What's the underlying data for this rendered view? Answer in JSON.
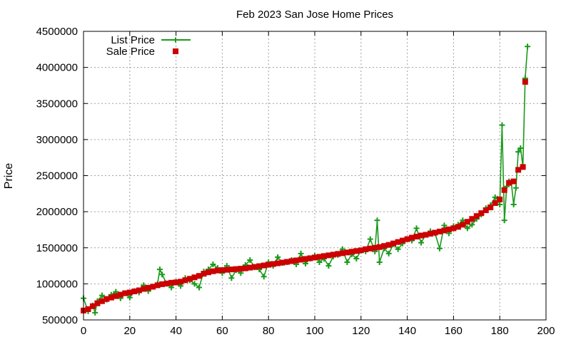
{
  "chart_data": {
    "type": "line",
    "title": "Feb 2023 San Jose Home Prices",
    "xlabel": "",
    "ylabel": "Price",
    "xlim": [
      0,
      200
    ],
    "ylim": [
      500000,
      4500000
    ],
    "x_ticks": [
      0,
      20,
      40,
      60,
      80,
      100,
      120,
      140,
      160,
      180,
      200
    ],
    "y_ticks": [
      500000,
      1000000,
      1500000,
      2000000,
      2500000,
      3000000,
      3500000,
      4000000,
      4500000
    ],
    "x_tick_labels": [
      "0",
      "20",
      "40",
      "60",
      "80",
      "100",
      "120",
      "140",
      "160",
      "180",
      "200"
    ],
    "y_tick_labels": [
      "500000",
      "1000000",
      "1500000",
      "2000000",
      "2500000",
      "3000000",
      "3500000",
      "4000000",
      "4500000"
    ],
    "grid": true,
    "legend_position": "top-left",
    "series": [
      {
        "name": "List Price",
        "color": "#1a9a1a",
        "style": "line-with-plus-markers",
        "x": [
          0,
          2,
          4,
          5,
          6,
          8,
          10,
          12,
          14,
          16,
          18,
          20,
          22,
          24,
          26,
          28,
          30,
          32,
          33,
          34,
          36,
          38,
          40,
          42,
          44,
          46,
          48,
          50,
          52,
          54,
          56,
          58,
          60,
          62,
          64,
          66,
          68,
          70,
          72,
          74,
          76,
          78,
          80,
          82,
          84,
          86,
          88,
          90,
          92,
          94,
          96,
          98,
          100,
          102,
          104,
          106,
          108,
          110,
          112,
          114,
          116,
          118,
          120,
          122,
          124,
          126,
          127,
          128,
          130,
          132,
          134,
          136,
          138,
          140,
          142,
          144,
          146,
          148,
          150,
          152,
          154,
          156,
          158,
          160,
          162,
          164,
          166,
          168,
          170,
          172,
          174,
          176,
          178,
          179,
          180,
          181,
          182,
          183,
          184,
          185,
          186,
          187,
          188,
          189,
          190,
          191,
          192
        ],
        "y": [
          800000,
          620000,
          700000,
          600000,
          760000,
          840000,
          780000,
          850000,
          890000,
          800000,
          870000,
          810000,
          900000,
          880000,
          980000,
          900000,
          960000,
          1000000,
          1200000,
          1130000,
          1000000,
          950000,
          1030000,
          970000,
          1080000,
          1050000,
          1000000,
          950000,
          1170000,
          1200000,
          1270000,
          1220000,
          1150000,
          1250000,
          1080000,
          1190000,
          1150000,
          1260000,
          1330000,
          1230000,
          1200000,
          1100000,
          1300000,
          1250000,
          1370000,
          1290000,
          1300000,
          1330000,
          1270000,
          1420000,
          1280000,
          1350000,
          1390000,
          1300000,
          1350000,
          1250000,
          1380000,
          1400000,
          1480000,
          1300000,
          1410000,
          1350000,
          1460000,
          1450000,
          1620000,
          1450000,
          1880000,
          1300000,
          1490000,
          1420000,
          1550000,
          1480000,
          1560000,
          1620000,
          1600000,
          1770000,
          1570000,
          1680000,
          1730000,
          1700000,
          1490000,
          1810000,
          1700000,
          1800000,
          1820000,
          1880000,
          1770000,
          1820000,
          1900000,
          1960000,
          2050000,
          2090000,
          2200000,
          2180000,
          2100000,
          3200000,
          1880000,
          2350000,
          2420000,
          2400000,
          2100000,
          2330000,
          2830000,
          2880000,
          2620000,
          3850000,
          4290000
        ]
      },
      {
        "name": "Sale Price",
        "color": "#cc0000",
        "style": "square-markers",
        "x": [
          0,
          2,
          4,
          6,
          8,
          10,
          12,
          14,
          16,
          18,
          20,
          22,
          24,
          26,
          28,
          30,
          32,
          34,
          36,
          38,
          40,
          42,
          44,
          46,
          48,
          50,
          52,
          54,
          56,
          58,
          60,
          62,
          64,
          66,
          68,
          70,
          72,
          74,
          76,
          78,
          80,
          82,
          84,
          86,
          88,
          90,
          92,
          94,
          96,
          98,
          100,
          102,
          104,
          106,
          108,
          110,
          112,
          114,
          116,
          118,
          120,
          122,
          124,
          126,
          128,
          130,
          132,
          134,
          136,
          138,
          140,
          142,
          144,
          146,
          148,
          150,
          152,
          154,
          156,
          158,
          160,
          162,
          164,
          166,
          168,
          170,
          172,
          174,
          176,
          178,
          180,
          182,
          184,
          186,
          188,
          190,
          191
        ],
        "y": [
          630000,
          650000,
          690000,
          730000,
          760000,
          790000,
          810000,
          830000,
          850000,
          870000,
          880000,
          895000,
          910000,
          930000,
          945000,
          960000,
          980000,
          995000,
          1005000,
          1015000,
          1020000,
          1030000,
          1050000,
          1070000,
          1090000,
          1110000,
          1140000,
          1160000,
          1175000,
          1185000,
          1190000,
          1195000,
          1200000,
          1205000,
          1210000,
          1215000,
          1225000,
          1235000,
          1245000,
          1255000,
          1265000,
          1275000,
          1285000,
          1295000,
          1305000,
          1315000,
          1325000,
          1335000,
          1345000,
          1355000,
          1365000,
          1375000,
          1385000,
          1395000,
          1405000,
          1415000,
          1425000,
          1435000,
          1445000,
          1455000,
          1465000,
          1480000,
          1490000,
          1500000,
          1510000,
          1525000,
          1540000,
          1560000,
          1580000,
          1600000,
          1620000,
          1640000,
          1655000,
          1670000,
          1680000,
          1695000,
          1710000,
          1725000,
          1740000,
          1755000,
          1770000,
          1790000,
          1820000,
          1860000,
          1900000,
          1940000,
          1980000,
          2020000,
          2060000,
          2120000,
          2170000,
          2300000,
          2400000,
          2420000,
          2580000,
          2620000,
          3800000
        ]
      }
    ]
  }
}
